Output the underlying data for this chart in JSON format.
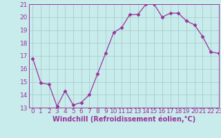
{
  "x": [
    0,
    1,
    2,
    3,
    4,
    5,
    6,
    7,
    8,
    9,
    10,
    11,
    12,
    13,
    14,
    15,
    16,
    17,
    18,
    19,
    20,
    21,
    22,
    23
  ],
  "y": [
    16.8,
    14.9,
    14.8,
    13.1,
    14.3,
    13.2,
    13.4,
    14.0,
    15.6,
    17.2,
    18.8,
    19.2,
    20.2,
    20.2,
    21.0,
    21.0,
    20.0,
    20.3,
    20.3,
    19.7,
    19.4,
    18.5,
    17.3,
    17.2
  ],
  "line_color": "#993399",
  "marker": "D",
  "marker_size": 2.5,
  "bg_color": "#c8ecec",
  "grid_color": "#aacccc",
  "xlabel": "Windchill (Refroidissement éolien,°C)",
  "ylim": [
    13,
    21
  ],
  "xlim": [
    -0.5,
    23
  ],
  "yticks": [
    13,
    14,
    15,
    16,
    17,
    18,
    19,
    20,
    21
  ],
  "xticks": [
    0,
    1,
    2,
    3,
    4,
    5,
    6,
    7,
    8,
    9,
    10,
    11,
    12,
    13,
    14,
    15,
    16,
    17,
    18,
    19,
    20,
    21,
    22,
    23
  ],
  "tick_label_fontsize": 6.5,
  "xlabel_fontsize": 7
}
